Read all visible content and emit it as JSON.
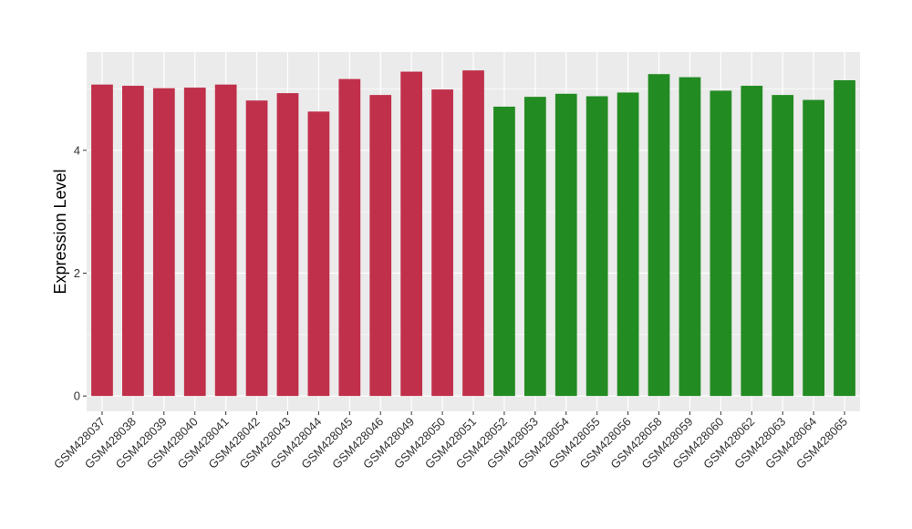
{
  "chart_data": {
    "type": "bar",
    "title": "",
    "xlabel": "",
    "ylabel": "Expression Level",
    "ylim": [
      -0.25,
      5.6
    ],
    "yticks": [
      0,
      2,
      4
    ],
    "grid": true,
    "legend": "none",
    "categories": [
      "GSM428037",
      "GSM428038",
      "GSM428039",
      "GSM428040",
      "GSM428041",
      "GSM428042",
      "GSM428043",
      "GSM428044",
      "GSM428045",
      "GSM428046",
      "GSM428049",
      "GSM428050",
      "GSM428051",
      "GSM428052",
      "GSM428053",
      "GSM428054",
      "GSM428055",
      "GSM428056",
      "GSM428058",
      "GSM428059",
      "GSM428060",
      "GSM428062",
      "GSM428063",
      "GSM428064",
      "GSM428065"
    ],
    "values": [
      5.07,
      5.05,
      5.01,
      5.02,
      5.07,
      4.81,
      4.93,
      4.63,
      5.16,
      4.9,
      5.28,
      4.99,
      5.3,
      4.71,
      4.87,
      4.92,
      4.88,
      4.94,
      5.24,
      5.19,
      4.97,
      5.05,
      4.9,
      4.82,
      5.14
    ],
    "colors": [
      "#c0304a",
      "#c0304a",
      "#c0304a",
      "#c0304a",
      "#c0304a",
      "#c0304a",
      "#c0304a",
      "#c0304a",
      "#c0304a",
      "#c0304a",
      "#c0304a",
      "#c0304a",
      "#c0304a",
      "#228b22",
      "#228b22",
      "#228b22",
      "#228b22",
      "#228b22",
      "#228b22",
      "#228b22",
      "#228b22",
      "#228b22",
      "#228b22",
      "#228b22",
      "#228b22"
    ],
    "panel_color": "#ebebeb",
    "grid_color": "#ffffff"
  }
}
